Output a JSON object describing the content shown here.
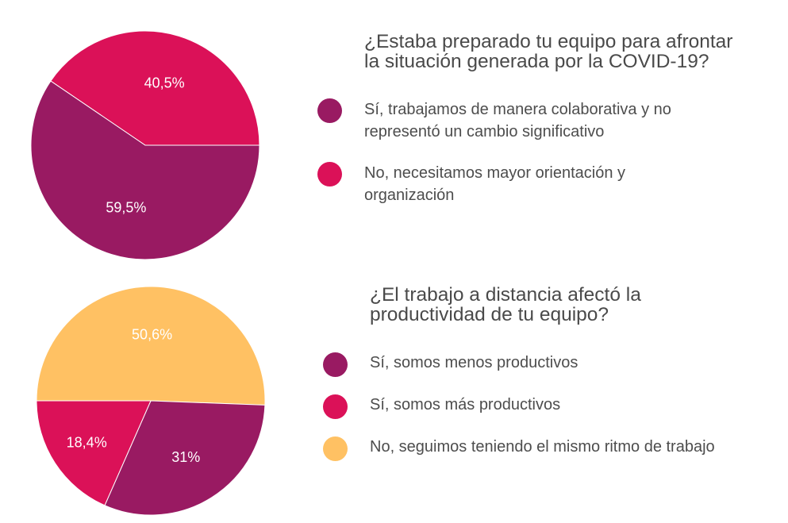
{
  "colors": {
    "purple": "#991a62",
    "pink": "#db1158",
    "yellow": "#ffc163"
  },
  "chart_data": [
    {
      "type": "pie",
      "title": "¿Estaba preparado tu equipo para afrontar la situación generada por la COVID-19?",
      "title_lines": [
        "¿Estaba preparado tu equipo para afrontar",
        "la situación generada por la COVID-19?"
      ],
      "slices": [
        {
          "label": "Sí, trabajamos de manera colaborativa y no representó un cambio significativo",
          "label_lines": [
            "Sí, trabajamos de manera colaborativa y no",
            "representó un cambio significativo"
          ],
          "value": 59.5,
          "value_label": "59,5%",
          "color": "#991a62"
        },
        {
          "label": "No, necesitamos mayor orientación y organización",
          "label_lines": [
            "No, necesitamos mayor orientación y",
            "organización"
          ],
          "value": 40.5,
          "value_label": "40,5%",
          "color": "#db1158"
        }
      ]
    },
    {
      "type": "pie",
      "title": "¿El trabajo a distancia afectó la productividad de tu equipo?",
      "title_lines": [
        "¿El trabajo a distancia afectó la",
        "productividad de tu equipo?"
      ],
      "slices": [
        {
          "label": "Sí, somos menos productivos",
          "label_lines": [
            "Sí, somos menos productivos"
          ],
          "value": 31,
          "value_label": "31%",
          "color": "#991a62"
        },
        {
          "label": "Sí, somos más productivos",
          "label_lines": [
            "Sí, somos más productivos"
          ],
          "value": 18.4,
          "value_label": "18,4%",
          "color": "#db1158"
        },
        {
          "label": "No, seguimos teniendo el mismo ritmo de trabajo",
          "label_lines": [
            "No, seguimos teniendo el mismo ritmo de trabajo"
          ],
          "value": 50.6,
          "value_label": "50,6%",
          "color": "#ffc163"
        }
      ]
    }
  ]
}
